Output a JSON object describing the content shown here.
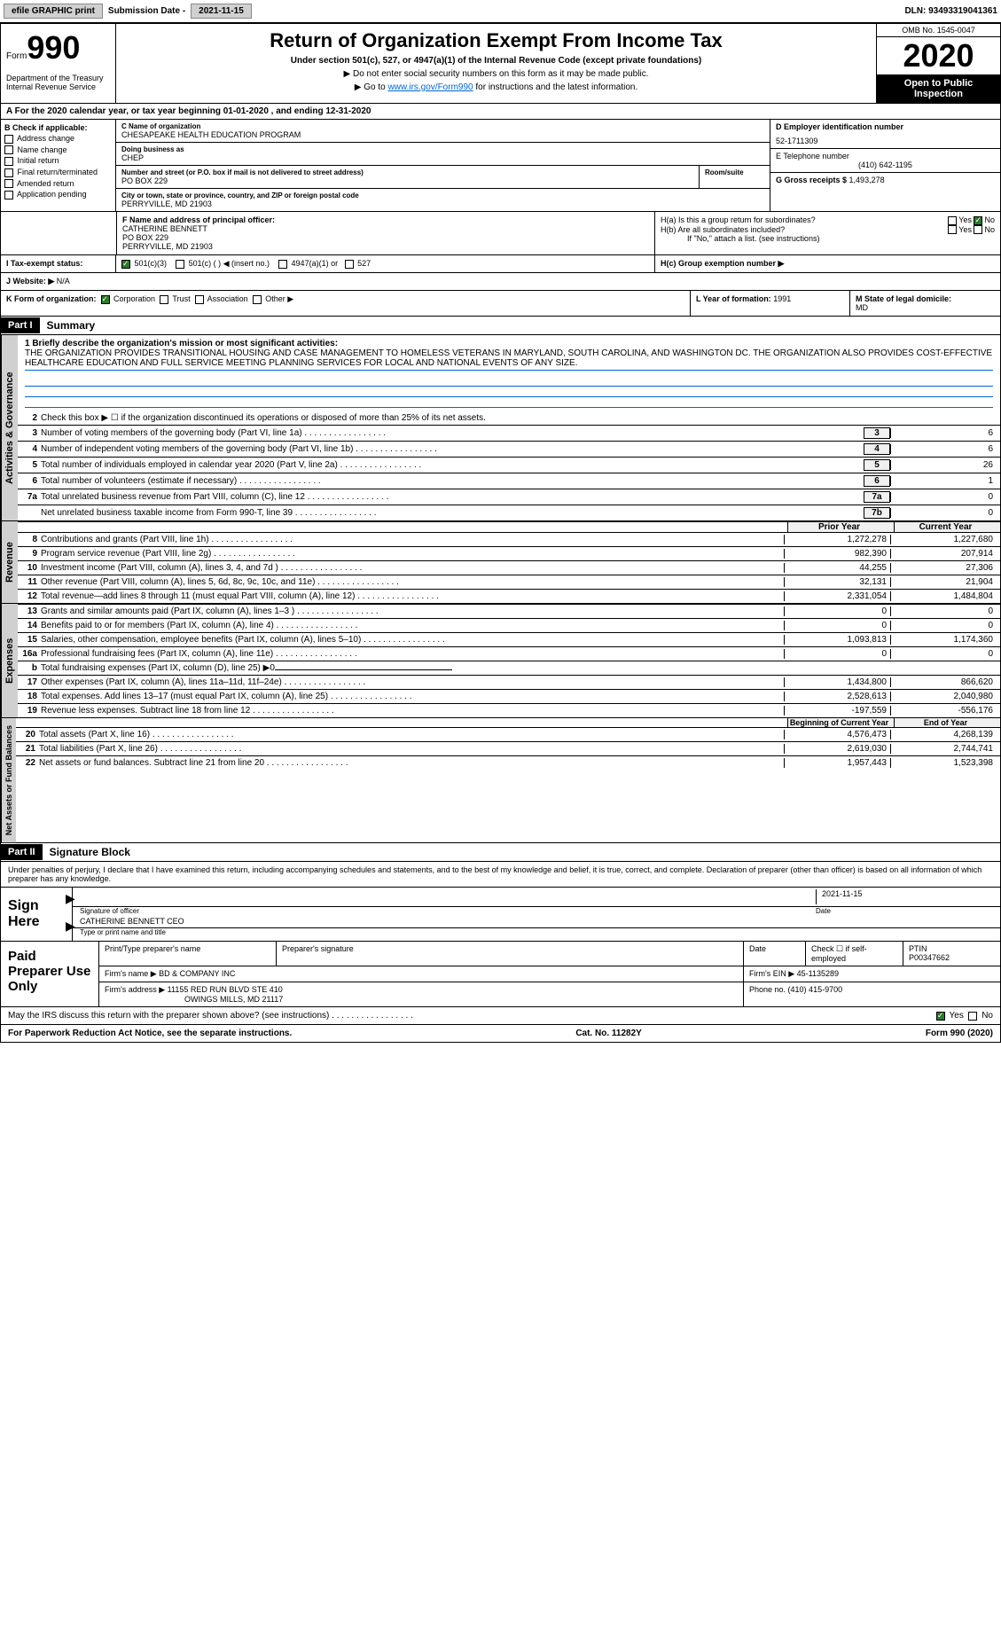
{
  "topbar": {
    "efile": "efile GRAPHIC print",
    "submission_label": "Submission Date - ",
    "submission_date": "2021-11-15",
    "dln_label": "DLN: ",
    "dln": "93493319041361"
  },
  "header": {
    "form_word": "Form",
    "form_num": "990",
    "dept": "Department of the Treasury\nInternal Revenue Service",
    "title": "Return of Organization Exempt From Income Tax",
    "subtitle": "Under section 501(c), 527, or 4947(a)(1) of the Internal Revenue Code (except private foundations)",
    "note1": "▶ Do not enter social security numbers on this form as it may be made public.",
    "note2_pre": "▶ Go to ",
    "note2_link": "www.irs.gov/Form990",
    "note2_post": " for instructions and the latest information.",
    "omb": "OMB No. 1545-0047",
    "year": "2020",
    "inspect": "Open to Public Inspection"
  },
  "period": {
    "text_a": "A For the 2020 calendar year, or tax year beginning ",
    "begin": "01-01-2020",
    "text_b": " , and ending ",
    "end": "12-31-2020"
  },
  "colB": {
    "hdr": "B Check if applicable:",
    "items": [
      "Address change",
      "Name change",
      "Initial return",
      "Final return/terminated",
      "Amended return",
      "Application pending"
    ]
  },
  "colC": {
    "name_lbl": "C Name of organization",
    "name": "CHESAPEAKE HEALTH EDUCATION PROGRAM",
    "dba_lbl": "Doing business as",
    "dba": "CHEP",
    "addr_lbl": "Number and street (or P.O. box if mail is not delivered to street address)",
    "room_lbl": "Room/suite",
    "addr": "PO BOX 229",
    "city_lbl": "City or town, state or province, country, and ZIP or foreign postal code",
    "city": "PERRYVILLE, MD  21903"
  },
  "colD": {
    "ein_lbl": "D Employer identification number",
    "ein": "52-1711309",
    "tel_lbl": "E Telephone number",
    "tel": "(410) 642-1195",
    "gross_lbl": "G Gross receipts $ ",
    "gross": "1,493,278"
  },
  "rowF": {
    "lbl": "F Name and address of principal officer:",
    "name": "CATHERINE BENNETT",
    "addr1": "PO BOX 229",
    "addr2": "PERRYVILLE, MD  21903"
  },
  "rowH": {
    "ha": "H(a)  Is this a group return for subordinates?",
    "hb": "H(b)  Are all subordinates included?",
    "hb_note": "If \"No,\" attach a list. (see instructions)",
    "hc": "H(c)  Group exemption number ▶",
    "yes": "Yes",
    "no": "No"
  },
  "rowI": {
    "lbl": "I  Tax-exempt status:",
    "opts": [
      "501(c)(3)",
      "501(c) (  ) ◀ (insert no.)",
      "4947(a)(1) or",
      "527"
    ]
  },
  "rowJ": {
    "lbl": "J  Website: ▶",
    "val": "N/A"
  },
  "rowK": {
    "lbl": "K Form of organization:",
    "opts": [
      "Corporation",
      "Trust",
      "Association",
      "Other ▶"
    ]
  },
  "rowL": {
    "lbl": "L Year of formation: ",
    "val": "1991"
  },
  "rowM": {
    "lbl": "M State of legal domicile:",
    "val": "MD"
  },
  "part1": {
    "hdr": "Part I",
    "title": "Summary",
    "line1_lbl": "1 Briefly describe the organization's mission or most significant activities:",
    "mission": "THE ORGANIZATION PROVIDES TRANSITIONAL HOUSING AND CASE MANAGEMENT TO HOMELESS VETERANS IN MARYLAND, SOUTH CAROLINA, AND WASHINGTON DC. THE ORGANIZATION ALSO PROVIDES COST-EFFECTIVE HEALTHCARE EDUCATION AND FULL SERVICE MEETING PLANNING SERVICES FOR LOCAL AND NATIONAL EVENTS OF ANY SIZE.",
    "line2": "Check this box ▶ ☐ if the organization discontinued its operations or disposed of more than 25% of its net assets.",
    "gov_lines": [
      {
        "n": "3",
        "t": "Number of voting members of the governing body (Part VI, line 1a)",
        "box": "3",
        "v": "6"
      },
      {
        "n": "4",
        "t": "Number of independent voting members of the governing body (Part VI, line 1b)",
        "box": "4",
        "v": "6"
      },
      {
        "n": "5",
        "t": "Total number of individuals employed in calendar year 2020 (Part V, line 2a)",
        "box": "5",
        "v": "26"
      },
      {
        "n": "6",
        "t": "Total number of volunteers (estimate if necessary)",
        "box": "6",
        "v": "1"
      },
      {
        "n": "7a",
        "t": "Total unrelated business revenue from Part VIII, column (C), line 12",
        "box": "7a",
        "v": "0"
      },
      {
        "n": "",
        "t": "Net unrelated business taxable income from Form 990-T, line 39",
        "box": "7b",
        "v": "0"
      }
    ],
    "col_prior": "Prior Year",
    "col_current": "Current Year",
    "rev_lines": [
      {
        "n": "8",
        "t": "Contributions and grants (Part VIII, line 1h)",
        "p": "1,272,278",
        "c": "1,227,680"
      },
      {
        "n": "9",
        "t": "Program service revenue (Part VIII, line 2g)",
        "p": "982,390",
        "c": "207,914"
      },
      {
        "n": "10",
        "t": "Investment income (Part VIII, column (A), lines 3, 4, and 7d )",
        "p": "44,255",
        "c": "27,306"
      },
      {
        "n": "11",
        "t": "Other revenue (Part VIII, column (A), lines 5, 6d, 8c, 9c, 10c, and 11e)",
        "p": "32,131",
        "c": "21,904"
      },
      {
        "n": "12",
        "t": "Total revenue—add lines 8 through 11 (must equal Part VIII, column (A), line 12)",
        "p": "2,331,054",
        "c": "1,484,804"
      }
    ],
    "exp_lines": [
      {
        "n": "13",
        "t": "Grants and similar amounts paid (Part IX, column (A), lines 1–3 )",
        "p": "0",
        "c": "0"
      },
      {
        "n": "14",
        "t": "Benefits paid to or for members (Part IX, column (A), line 4)",
        "p": "0",
        "c": "0"
      },
      {
        "n": "15",
        "t": "Salaries, other compensation, employee benefits (Part IX, column (A), lines 5–10)",
        "p": "1,093,813",
        "c": "1,174,360"
      },
      {
        "n": "16a",
        "t": "Professional fundraising fees (Part IX, column (A), line 11e)",
        "p": "0",
        "c": "0"
      },
      {
        "n": "b",
        "t": "Total fundraising expenses (Part IX, column (D), line 25) ▶0",
        "p": "",
        "c": ""
      },
      {
        "n": "17",
        "t": "Other expenses (Part IX, column (A), lines 11a–11d, 11f–24e)",
        "p": "1,434,800",
        "c": "866,620"
      },
      {
        "n": "18",
        "t": "Total expenses. Add lines 13–17 (must equal Part IX, column (A), line 25)",
        "p": "2,528,613",
        "c": "2,040,980"
      },
      {
        "n": "19",
        "t": "Revenue less expenses. Subtract line 18 from line 12",
        "p": "-197,559",
        "c": "-556,176"
      }
    ],
    "col_begin": "Beginning of Current Year",
    "col_end": "End of Year",
    "net_lines": [
      {
        "n": "20",
        "t": "Total assets (Part X, line 16)",
        "p": "4,576,473",
        "c": "4,268,139"
      },
      {
        "n": "21",
        "t": "Total liabilities (Part X, line 26)",
        "p": "2,619,030",
        "c": "2,744,741"
      },
      {
        "n": "22",
        "t": "Net assets or fund balances. Subtract line 21 from line 20",
        "p": "1,957,443",
        "c": "1,523,398"
      }
    ],
    "tab_gov": "Activities & Governance",
    "tab_rev": "Revenue",
    "tab_exp": "Expenses",
    "tab_net": "Net Assets or Fund Balances"
  },
  "part2": {
    "hdr": "Part II",
    "title": "Signature Block",
    "decl": "Under penalties of perjury, I declare that I have examined this return, including accompanying schedules and statements, and to the best of my knowledge and belief, it is true, correct, and complete. Declaration of preparer (other than officer) is based on all information of which preparer has any knowledge.",
    "sign_here": "Sign Here",
    "sig_officer": "Signature of officer",
    "sig_date": "Date",
    "officer_date": "2021-11-15",
    "officer_name": "CATHERINE BENNETT CEO",
    "type_name": "Type or print name and title",
    "paid": "Paid Preparer Use Only",
    "prep_name_lbl": "Print/Type preparer's name",
    "prep_sig_lbl": "Preparer's signature",
    "date_lbl": "Date",
    "self_lbl": "Check ☐ if self-employed",
    "ptin_lbl": "PTIN",
    "ptin": "P00347662",
    "firm_name_lbl": "Firm's name    ▶",
    "firm_name": "BD & COMPANY INC",
    "firm_ein_lbl": "Firm's EIN ▶",
    "firm_ein": "45-1135289",
    "firm_addr_lbl": "Firm's address ▶",
    "firm_addr1": "11155 RED RUN BLVD STE 410",
    "firm_addr2": "OWINGS MILLS, MD  21117",
    "phone_lbl": "Phone no. ",
    "phone": "(410) 415-9700",
    "discuss": "May the IRS discuss this return with the preparer shown above? (see instructions)",
    "discuss_yes": "Yes",
    "discuss_no": "No"
  },
  "footer": {
    "left": "For Paperwork Reduction Act Notice, see the separate instructions.",
    "mid": "Cat. No. 11282Y",
    "right": "Form 990 (2020)"
  }
}
